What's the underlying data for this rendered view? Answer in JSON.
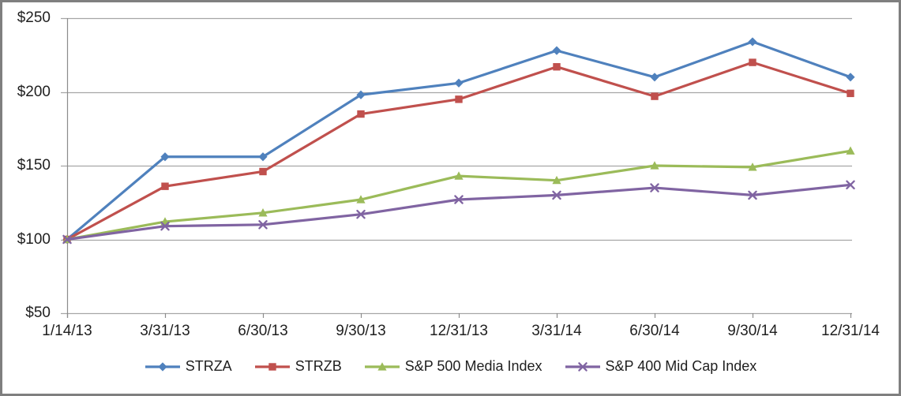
{
  "chart_data": {
    "type": "line",
    "categories": [
      "1/14/13",
      "3/31/13",
      "6/30/13",
      "9/30/13",
      "12/31/13",
      "3/31/14",
      "6/30/14",
      "9/30/14",
      "12/31/14"
    ],
    "series": [
      {
        "name": "STRZA",
        "marker": "diamond",
        "color": "#4F81BD",
        "values": [
          100,
          156,
          156,
          198,
          206,
          228,
          210,
          234,
          210
        ]
      },
      {
        "name": "STRZB",
        "marker": "square",
        "color": "#C0504D",
        "values": [
          100,
          136,
          146,
          185,
          195,
          217,
          197,
          220,
          199
        ]
      },
      {
        "name": "S&P 500 Media Index",
        "marker": "triangle",
        "color": "#9BBB59",
        "values": [
          100,
          112,
          118,
          127,
          143,
          140,
          150,
          149,
          160
        ]
      },
      {
        "name": "S&P 400 Mid Cap Index",
        "marker": "x",
        "color": "#8064A2",
        "values": [
          100,
          109,
          110,
          117,
          127,
          130,
          135,
          130,
          137
        ]
      }
    ],
    "ylim": [
      50,
      250
    ],
    "y_tick_step": 50,
    "y_ticks": [
      {
        "v": 50,
        "label": "$50"
      },
      {
        "v": 100,
        "label": "$100"
      },
      {
        "v": 150,
        "label": "$150"
      },
      {
        "v": 200,
        "label": "$200"
      },
      {
        "v": 250,
        "label": "$250"
      }
    ],
    "grid": "horizontal",
    "legend_position": "bottom"
  },
  "styles": {
    "gridline_color": "#A6A6A6",
    "axis_color": "#8C8C8C",
    "text_color": "#1F1F1F",
    "canvas_border_color": "#7F7F7F",
    "background_color": "#FFFFFF"
  }
}
